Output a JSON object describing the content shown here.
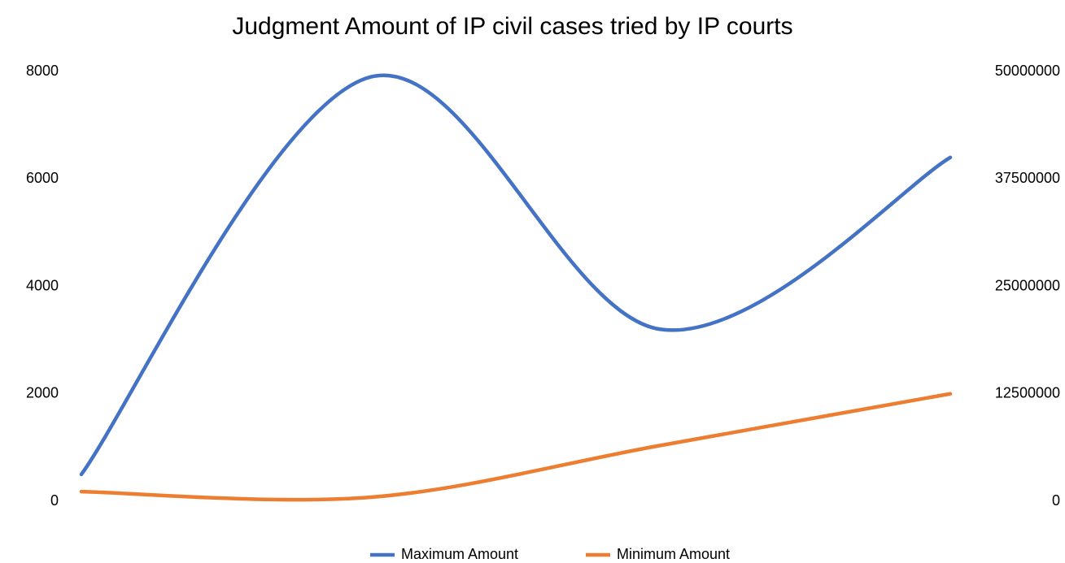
{
  "chart_data": {
    "type": "line",
    "title": "Judgment Amount of IP civil cases tried by IP courts",
    "categories": [
      null,
      null,
      null,
      null
    ],
    "series": [
      {
        "name": "Maximum Amount",
        "color": "#4472c4",
        "axis": "y2",
        "values": [
          3125000,
          49375000,
          20000000,
          40000000
        ]
      },
      {
        "name": "Minimum Amount",
        "color": "#ed7d31",
        "values": [
          180,
          75,
          1040,
          2000
        ]
      }
    ],
    "ylim": [
      0,
      8000
    ],
    "yticks": [
      0,
      2000,
      4000,
      6000,
      8000
    ],
    "y2lim": [
      0,
      50000000
    ],
    "y2ticks": [
      0,
      12500000,
      25000000,
      37500000,
      50000000
    ],
    "smooth": true,
    "grid": false,
    "legend": "bottom"
  }
}
